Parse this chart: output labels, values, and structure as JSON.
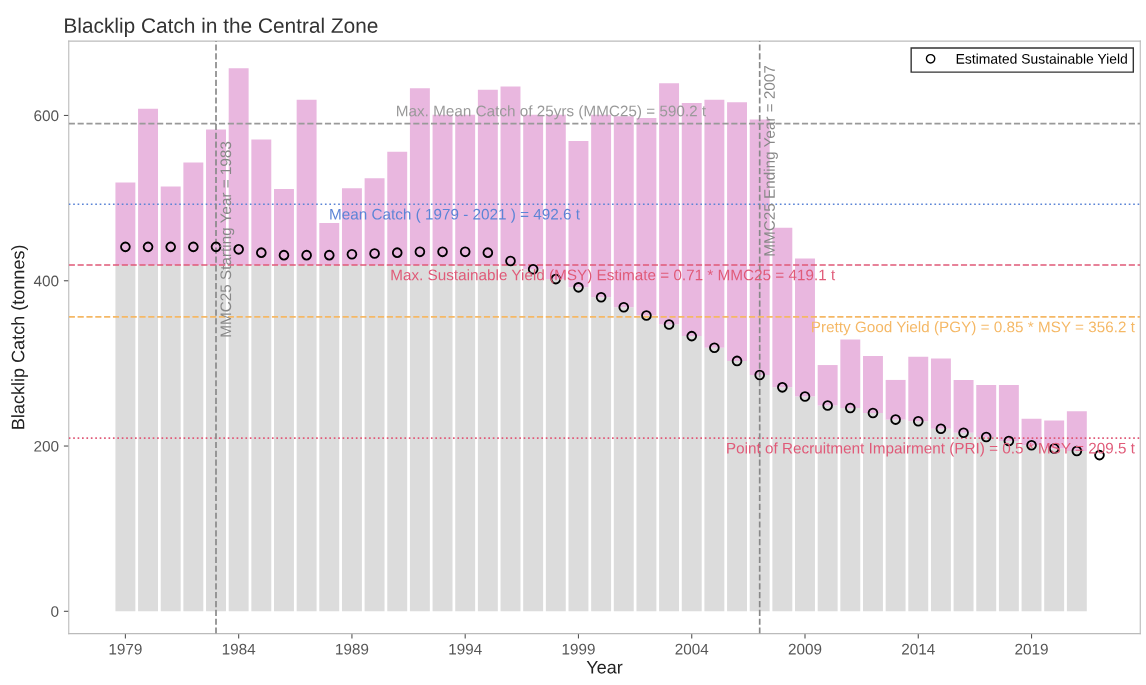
{
  "chart_data": {
    "type": "bar",
    "title": "Blacklip Catch in the Central Zone",
    "xlabel": "Year",
    "ylabel": "Blacklip Catch (tonnes)",
    "stacked": true,
    "x": [
      1979,
      1980,
      1981,
      1982,
      1983,
      1984,
      1985,
      1986,
      1987,
      1988,
      1989,
      1990,
      1991,
      1992,
      1993,
      1994,
      1995,
      1996,
      1997,
      1998,
      1999,
      2000,
      2001,
      2002,
      2003,
      2004,
      2005,
      2006,
      2007,
      2008,
      2009,
      2010,
      2011,
      2012,
      2013,
      2014,
      2015,
      2016,
      2017,
      2018,
      2019,
      2020,
      2021
    ],
    "series": [
      {
        "color": "#dcdcdc",
        "values": [
          419,
          419,
          419,
          419,
          419,
          419,
          419,
          419,
          419,
          419,
          419,
          419,
          419,
          419,
          419,
          419,
          419,
          419,
          414,
          402,
          392,
          380,
          368,
          358,
          347,
          333,
          319,
          303,
          286,
          271,
          260,
          249,
          246,
          240,
          232,
          230,
          221,
          216,
          211,
          206,
          201,
          197,
          194
        ]
      },
      {
        "color": "#e9b7df",
        "values": [
          100,
          189,
          95,
          124,
          164,
          238,
          152,
          92,
          200,
          51,
          93,
          105,
          137,
          214,
          182,
          182,
          212,
          216,
          187,
          199,
          177,
          221,
          231,
          239,
          292,
          282,
          300,
          313,
          309,
          193,
          167,
          49,
          83,
          69,
          48,
          78,
          85,
          64,
          63,
          68,
          32,
          34,
          48
        ]
      },
      {
        "type": "scatter",
        "name": "Estimated Sustainable Yield",
        "color": "#000000",
        "marker": "circle",
        "x": [
          1979,
          1980,
          1981,
          1982,
          1983,
          1984,
          1985,
          1986,
          1987,
          1988,
          1989,
          1990,
          1991,
          1992,
          1993,
          1994,
          1995,
          1996,
          1997,
          1998,
          1999,
          2000,
          2001,
          2002,
          2003,
          2004,
          2005,
          2006,
          2007,
          2008,
          2009,
          2010,
          2011,
          2012,
          2013,
          2014,
          2015,
          2016,
          2017,
          2018,
          2019,
          2020,
          2021,
          2022
        ],
        "values": [
          441,
          441,
          441,
          441,
          441,
          438,
          434,
          431,
          431,
          431,
          432,
          433,
          434,
          435,
          435,
          435,
          434,
          424,
          414,
          402,
          392,
          380,
          368,
          358,
          347,
          333,
          319,
          303,
          286,
          271,
          260,
          249,
          246,
          240,
          232,
          230,
          221,
          216,
          211,
          206,
          201,
          197,
          194,
          189
        ]
      }
    ],
    "xlim": [
      1976.5,
      2023.8
    ],
    "xticks": [
      1979,
      1984,
      1989,
      1994,
      1999,
      2004,
      2009,
      2014,
      2019
    ],
    "ylim": [
      -27,
      690
    ],
    "yticks": [
      0,
      200,
      400,
      600
    ],
    "ref_lines": [
      {
        "axis": "y",
        "value": 590.2,
        "label": "Max. Mean Catch of 25yrs (MMC25) = 590.2 t",
        "color": "#999999",
        "line_style": "dashed"
      },
      {
        "axis": "y",
        "value": 492.6,
        "label": "Mean Catch ( 1979 - 2021 ) = 492.6 t",
        "color": "#5b84d6",
        "line_style": "dotted"
      },
      {
        "axis": "y",
        "value": 419.1,
        "label": "Max. Sustainable Yield (MSY) Estimate = 0.71 * MMC25 = 419.1 t",
        "color": "#e05a78",
        "line_style": "dashed"
      },
      {
        "axis": "y",
        "value": 356.2,
        "label": "Pretty Good Yield (PGY) = 0.85 * MSY = 356.2 t",
        "color": "#f5b865",
        "line_style": "dashed"
      },
      {
        "axis": "y",
        "value": 209.5,
        "label": "Point of Recruitment Impairment (PRI) = 0.5 * MSY = 209.5 t",
        "color": "#e05a78",
        "line_style": "dotted"
      },
      {
        "axis": "x",
        "value": 1983,
        "label": "MMC25 Starting Year = 1983",
        "color": "#888888",
        "line_style": "dashed"
      },
      {
        "axis": "x",
        "value": 2007,
        "label": "MMC25 Ending Year = 2007",
        "color": "#888888",
        "line_style": "dashed"
      }
    ],
    "grid": false,
    "legend": "top right"
  }
}
